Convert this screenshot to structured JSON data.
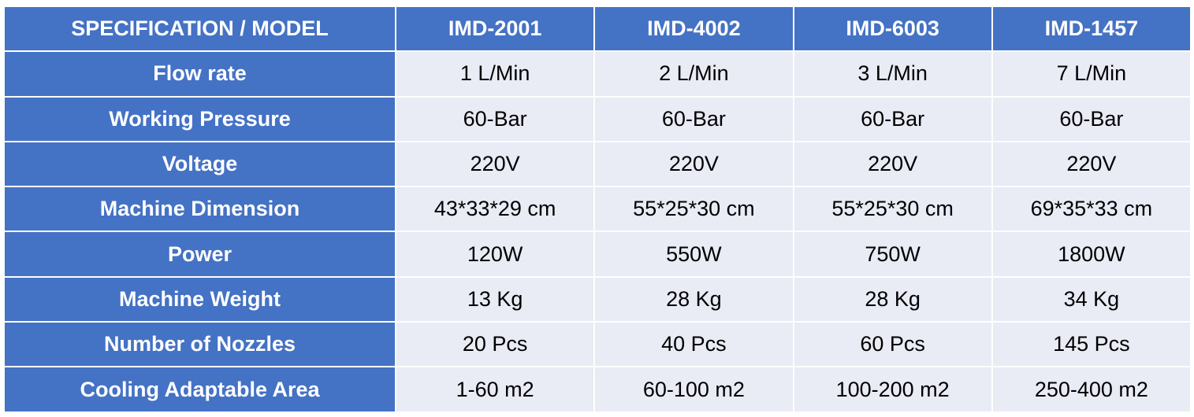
{
  "table": {
    "header": [
      "SPECIFICATION / MODEL",
      "IMD-2001",
      "IMD-4002",
      "IMD-6003",
      "IMD-1457"
    ],
    "rows": [
      [
        "Flow rate",
        "1 L/Min",
        "2 L/Min",
        "3 L/Min",
        "7 L/Min"
      ],
      [
        "Working Pressure",
        "60-Bar",
        "60-Bar",
        "60-Bar",
        "60-Bar"
      ],
      [
        "Voltage",
        "220V",
        "220V",
        "220V",
        "220V"
      ],
      [
        "Machine Dimension",
        "43*33*29 cm",
        "55*25*30 cm",
        "55*25*30 cm",
        "69*35*33 cm"
      ],
      [
        "Power",
        "120W",
        "550W",
        "750W",
        "1800W"
      ],
      [
        "Machine Weight",
        "13 Kg",
        "28 Kg",
        "28 Kg",
        "34 Kg"
      ],
      [
        "Number of Nozzles",
        "20 Pcs",
        "40 Pcs",
        "60 Pcs",
        "145 Pcs"
      ],
      [
        "Cooling Adaptable Area",
        "1-60 m2",
        "60-100 m2",
        "100-200 m2",
        "250-400 m2"
      ]
    ]
  }
}
